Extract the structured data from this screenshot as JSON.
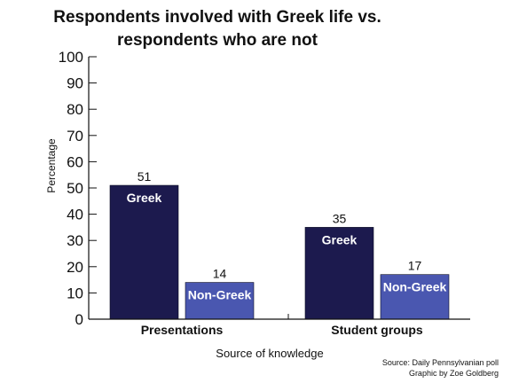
{
  "chart_data": {
    "type": "bar",
    "title": "Respondents involved with Greek life vs. respondents who are not",
    "title_lines": [
      "Respondents involved with Greek life vs.",
      "respondents who are not"
    ],
    "xlabel": "Source of knowledge",
    "ylabel": "Percentage",
    "categories": [
      "Presentations",
      "Student groups"
    ],
    "series": [
      {
        "name": "Greek",
        "values": [
          51,
          35
        ],
        "color": "#1c1a4e"
      },
      {
        "name": "Non-Greek",
        "values": [
          14,
          17
        ],
        "color": "#4a57b0"
      }
    ],
    "ylim": [
      0,
      100
    ],
    "yticks": [
      0,
      10,
      20,
      30,
      40,
      50,
      60,
      70,
      80,
      90,
      100
    ],
    "legend": "inside bars",
    "grid": false
  },
  "source_lines": [
    "Source: Daily Pennsylvanian poll",
    "Graphic by Zoe Goldberg"
  ]
}
